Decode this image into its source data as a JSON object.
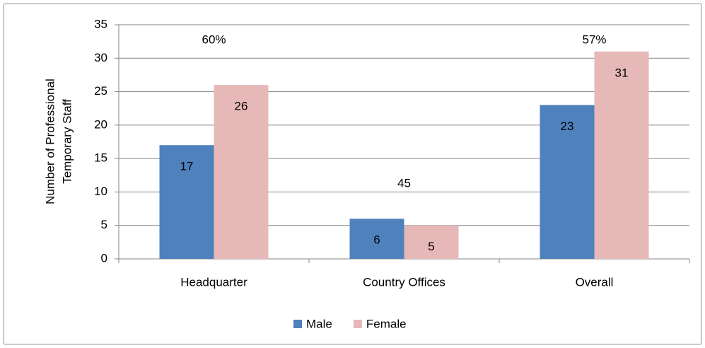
{
  "chart_data": {
    "type": "bar",
    "ylabel": [
      "Number of Professional",
      "Temporary Staff"
    ],
    "categories": [
      "Headquarter",
      "Country Offices",
      "Overall"
    ],
    "series": [
      {
        "name": "Male",
        "color": "#4f81bd",
        "values": [
          17,
          6,
          23
        ]
      },
      {
        "name": "Female",
        "color": "#e6b9b8",
        "values": [
          26,
          5,
          31
        ]
      }
    ],
    "annotations": [
      "60%",
      "45",
      "57%"
    ],
    "ylim": [
      0,
      35
    ],
    "yticks": [
      0,
      5,
      10,
      15,
      20,
      25,
      30,
      35
    ],
    "grid": true,
    "legend": "bottom"
  }
}
